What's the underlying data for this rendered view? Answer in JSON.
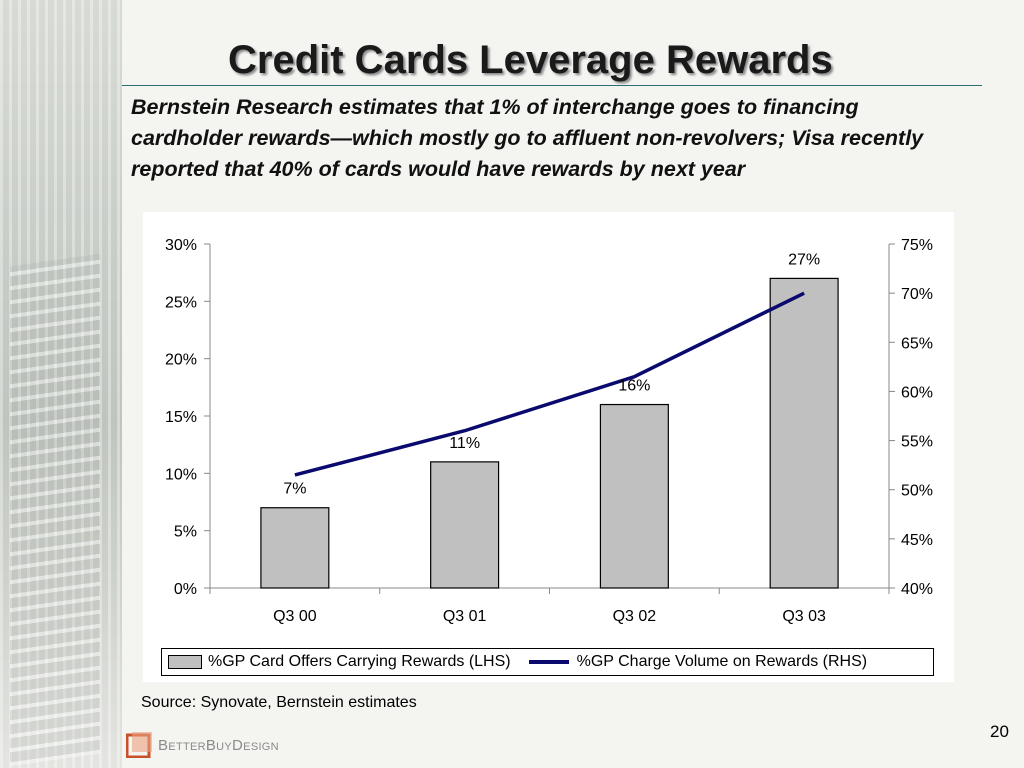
{
  "slide": {
    "title": "Credit Cards Leverage Rewards",
    "subtitle": "Bernstein Research estimates that 1% of interchange goes to financing cardholder rewards—which mostly go to affluent non-revolvers; Visa recently reported that 40% of cards would have rewards by next year",
    "source": "Source: Synovate, Bernstein estimates",
    "page_number": "20",
    "logo_text": "BetterBuyDesign"
  },
  "chart_data": {
    "type": "bar",
    "categories": [
      "Q3 00",
      "Q3 01",
      "Q3 02",
      "Q3 03"
    ],
    "series": [
      {
        "name": "%GP Card Offers Carrying Rewards (LHS)",
        "type": "bar",
        "axis": "left",
        "values": [
          7,
          11,
          16,
          27
        ],
        "data_labels": [
          "7%",
          "11%",
          "16%",
          "27%"
        ],
        "color": "#c0c0c0"
      },
      {
        "name": "%GP Charge Volume on Rewards (RHS)",
        "type": "line",
        "axis": "right",
        "values": [
          51.5,
          56,
          61.5,
          70
        ],
        "color": "#0a0a6e"
      }
    ],
    "left_axis": {
      "ylim": [
        0,
        30
      ],
      "ticks": [
        0,
        5,
        10,
        15,
        20,
        25,
        30
      ],
      "tick_labels": [
        "0%",
        "5%",
        "10%",
        "15%",
        "20%",
        "25%",
        "30%"
      ]
    },
    "right_axis": {
      "ylim": [
        40,
        75
      ],
      "ticks": [
        40,
        45,
        50,
        55,
        60,
        65,
        70,
        75
      ],
      "tick_labels": [
        "40%",
        "45%",
        "50%",
        "55%",
        "60%",
        "65%",
        "70%",
        "75%"
      ]
    },
    "grid": false,
    "legend_position": "bottom"
  }
}
